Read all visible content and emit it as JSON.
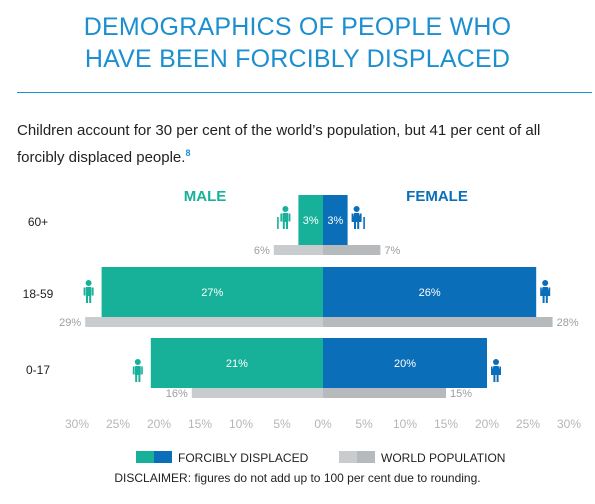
{
  "header": {
    "title_line1": "DEMOGRAPHICS OF PEOPLE WHO",
    "title_line2": "HAVE BEEN FORCIBLY DISPLACED",
    "subtitle": "Children account for 30 per cent of the world’s population, but 41 per cent of all forcibly displaced people.",
    "footnote_ref": "8"
  },
  "chart_data": {
    "type": "bar",
    "orientation": "horizontal-pyramid",
    "sides": {
      "left": "MALE",
      "right": "FEMALE"
    },
    "categories": [
      "60+",
      "18-59",
      "0-17"
    ],
    "x_ticks": [
      "30%",
      "25%",
      "20%",
      "15%",
      "10%",
      "5%",
      "0%",
      "5%",
      "10%",
      "15%",
      "20%",
      "25%",
      "30%"
    ],
    "xlim": [
      -30,
      30
    ],
    "series": [
      {
        "name": "FORCIBLY DISPLACED",
        "side": "male",
        "values": [
          3,
          27,
          21
        ],
        "labels": [
          "3%",
          "27%",
          "21%"
        ]
      },
      {
        "name": "FORCIBLY DISPLACED",
        "side": "female",
        "values": [
          3,
          26,
          20
        ],
        "labels": [
          "3%",
          "26%",
          "20%"
        ]
      },
      {
        "name": "WORLD POPULATION",
        "side": "male",
        "values": [
          6,
          29,
          16
        ],
        "labels": [
          "6%",
          "29%",
          "16%"
        ]
      },
      {
        "name": "WORLD POPULATION",
        "side": "female",
        "values": [
          7,
          28,
          15
        ],
        "labels": [
          "7%",
          "28%",
          "15%"
        ]
      }
    ],
    "legend": {
      "placement": "bottom",
      "items": [
        "FORCIBLY DISPLACED",
        "WORLD POPULATION"
      ]
    },
    "colors": {
      "male": "#17b19a",
      "female": "#0a6eb8",
      "world_male": "#c9ccce",
      "world_female": "#b7babd",
      "title": "#1b8fd0",
      "tick": "#b3b6b9",
      "world_label": "#9a9ea2"
    }
  },
  "disclaimer": "DISCLAIMER: figures do not add up to 100 per cent due to rounding."
}
